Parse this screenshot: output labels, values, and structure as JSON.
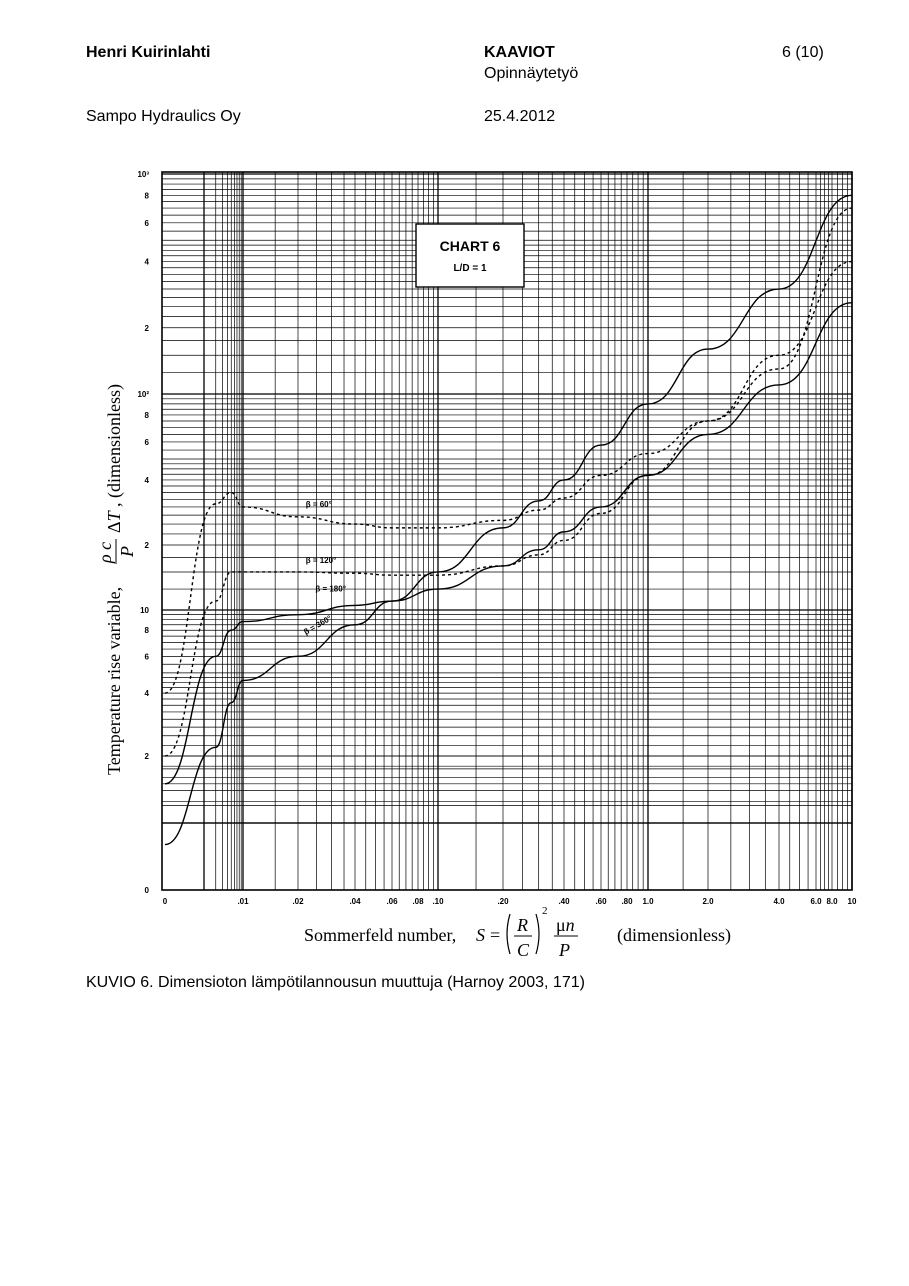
{
  "header": {
    "author": "Henri Kuirinlahti",
    "doc_type": "KAAVIOT",
    "doc_subtype": "Opinnäytetyö",
    "page": "6 (10)",
    "company": "Sampo Hydraulics Oy",
    "date": "25.4.2012"
  },
  "caption": "KUVIO 6. Dimensioton lämpötilannousun muuttuja (Harnoy 2003, 171)",
  "chart_data": {
    "type": "line",
    "title": "CHART 6",
    "subtitle": "L/D = 1",
    "xlabel_prefix": "Sommerfeld number,",
    "xlabel_suffix": "(dimensionless)",
    "ylabel": "Temperature rise variable,",
    "ylabel_suffix": ", (dimensionless)",
    "x_scale": "log",
    "y_scale": "log",
    "grid": true,
    "xlim": [
      0,
      10
    ],
    "ylim": [
      0,
      1000
    ],
    "x_tick_labels": [
      "0",
      ".01",
      ".02",
      ".04",
      ".06",
      ".08",
      ".10",
      ".20",
      ".40",
      ".60",
      ".80",
      "1.0",
      "2.0",
      "4.0",
      "6.0",
      "8.0",
      "10"
    ],
    "y_tick_labels": [
      "0",
      "2",
      "4",
      "6",
      "8",
      "10",
      "2",
      "4",
      "6",
      "8",
      "10²",
      "2",
      "4",
      "6",
      "8",
      "10³"
    ],
    "series": [
      {
        "name": "β = 60°",
        "x": [
          0.0001,
          0.002,
          0.005,
          0.01,
          0.02,
          0.04,
          0.06,
          0.1,
          0.2,
          0.3,
          0.4,
          0.6,
          1.0,
          2.0,
          4.0,
          10.0
        ],
        "y": [
          4,
          31,
          35,
          30,
          27,
          25,
          24,
          24,
          26,
          29,
          33,
          42,
          53,
          75,
          130,
          700
        ]
      },
      {
        "name": "β = 120°",
        "x": [
          0.0001,
          0.002,
          0.005,
          0.01,
          0.02,
          0.04,
          0.06,
          0.1,
          0.2,
          0.3,
          0.4,
          0.6,
          1.0,
          2.0,
          4.0,
          10.0
        ],
        "y": [
          2,
          11,
          15,
          15,
          15,
          14.8,
          14.5,
          14.5,
          16,
          18,
          21,
          28,
          42,
          75,
          150,
          400
        ]
      },
      {
        "name": "β = 180°",
        "x": [
          0.0001,
          0.002,
          0.005,
          0.01,
          0.02,
          0.04,
          0.06,
          0.1,
          0.2,
          0.3,
          0.4,
          0.6,
          1.0,
          2.0,
          4.0,
          10.0
        ],
        "y": [
          1.5,
          6,
          8,
          8.8,
          9.5,
          10.5,
          11,
          12.5,
          16,
          19,
          23,
          30,
          42,
          65,
          110,
          260
        ]
      },
      {
        "name": "β = 360°",
        "x": [
          0.0001,
          0.002,
          0.005,
          0.01,
          0.02,
          0.04,
          0.06,
          0.1,
          0.2,
          0.3,
          0.4,
          0.6,
          1.0,
          2.0,
          4.0,
          10.0
        ],
        "y": [
          0.8,
          2.2,
          3.6,
          4.6,
          6.0,
          8.5,
          11,
          15,
          24,
          32,
          40,
          58,
          90,
          160,
          300,
          800
        ]
      }
    ]
  }
}
